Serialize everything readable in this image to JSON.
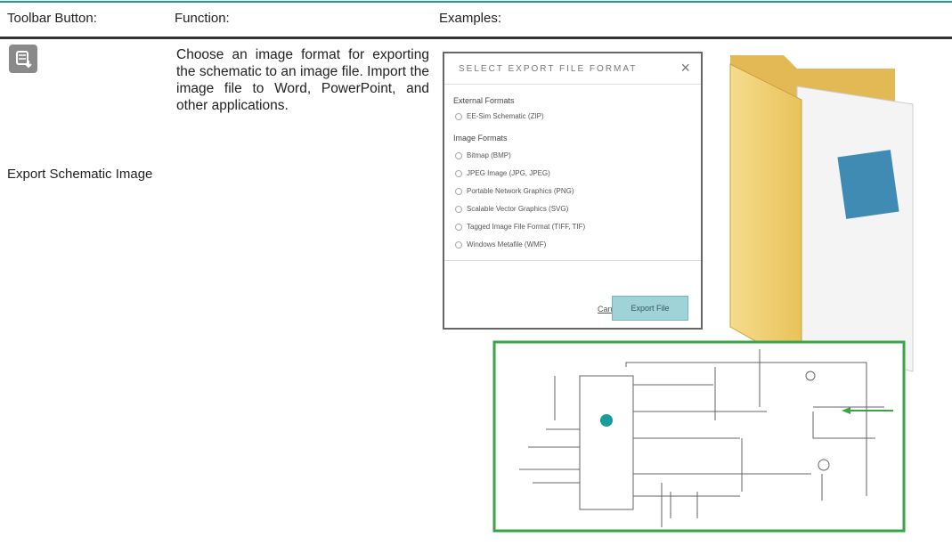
{
  "header": {
    "columns": [
      "Toolbar Button:",
      "Function:",
      "Examples:"
    ]
  },
  "row": {
    "button_label": "Export Schematic Image",
    "function": "Choose an image format for exporting the schematic to an image file. Import the image file to Word, PowerPoint, and other applications.",
    "dialog": {
      "title": "SELECT EXPORT FILE FORMAT",
      "close": "×",
      "external_heading": "External Formats",
      "external_options": [
        "EE-Sim Schematic (ZIP)"
      ],
      "image_heading": "Image Formats",
      "image_options": [
        "Bitmap (BMP)",
        "JPEG Image (JPG, JPEG)",
        "Portable Network Graphics (PNG)",
        "Scalable Vector Graphics (SVG)",
        "Tagged Image File Format (TIFF, TIF)",
        "Windows Metafile (WMF)"
      ],
      "cancel": "Cancel",
      "export": "Export File"
    }
  }
}
